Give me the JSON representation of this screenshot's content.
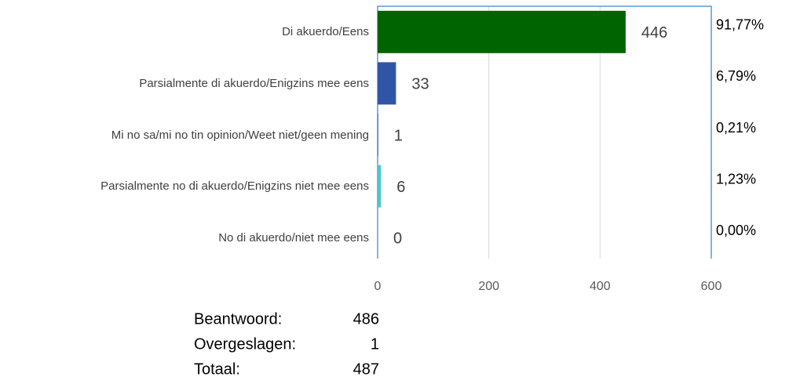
{
  "chart_data": {
    "type": "bar",
    "orientation": "horizontal",
    "categories": [
      "Di akuerdo/Eens",
      "Parsialmente di akuerdo/Enigzins mee eens",
      "Mi no sa/mi no tin opinion/Weet niet/geen mening",
      "Parsialmente no di akuerdo/Enigzins niet mee eens",
      "No di akuerdo/niet mee eens"
    ],
    "values": [
      446,
      33,
      1,
      6,
      0
    ],
    "colors": [
      "#006400",
      "#2f55a4",
      "#2f55a4",
      "#4bc8c8",
      "#4bc8c8"
    ],
    "percent_labels": [
      "91,77%",
      "6,79%",
      "0,21%",
      "1,23%",
      "0,00%"
    ],
    "xlim": [
      0,
      600
    ],
    "xticks": [
      0,
      200,
      400,
      600
    ],
    "grid": true,
    "summary": [
      {
        "label": "Beantwoord:",
        "value": 486
      },
      {
        "label": "Overgeslagen:",
        "value": 1
      },
      {
        "label": "Totaal:",
        "value": 487
      }
    ]
  }
}
